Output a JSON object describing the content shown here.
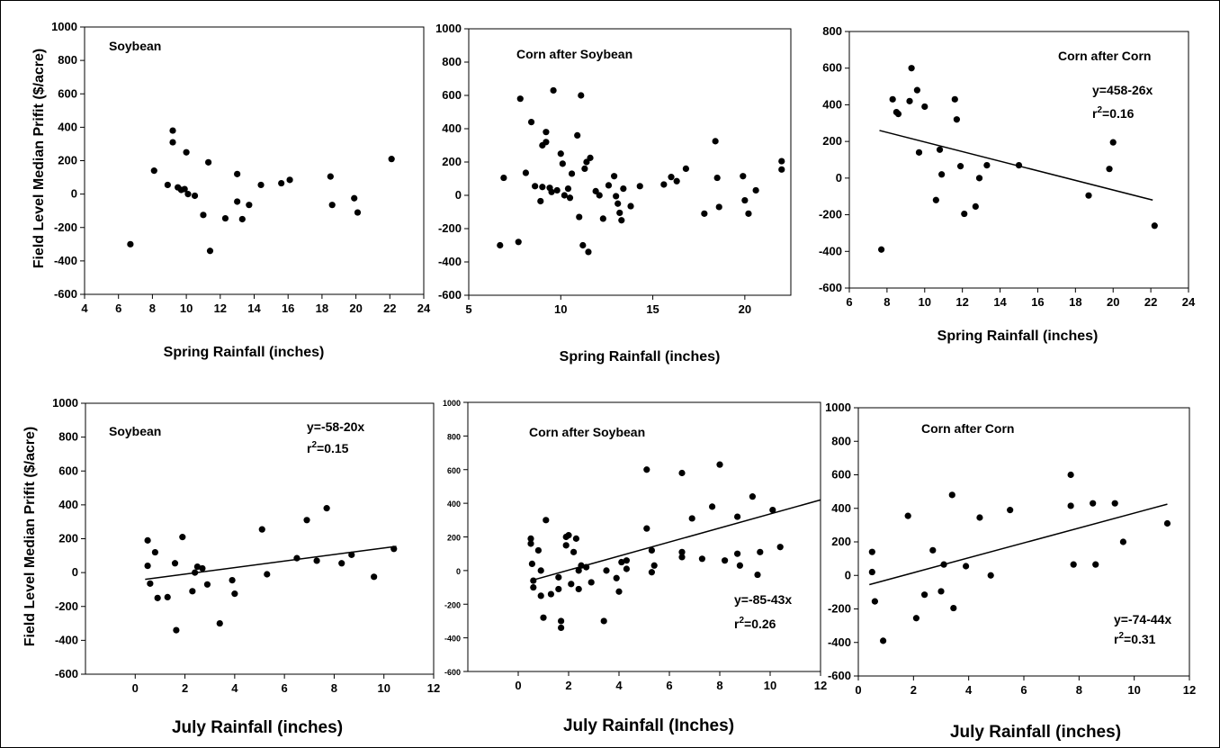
{
  "figure": {
    "ylabel": "Field Level Median Prifit ($/acre)"
  },
  "chart_data": [
    {
      "type": "scatter",
      "title": "Soybean",
      "xlabel": "Spring Rainfall (inches)",
      "xlim": [
        4,
        24
      ],
      "ylim": [
        -600,
        1000
      ],
      "xticks": [
        4,
        6,
        8,
        10,
        12,
        14,
        16,
        18,
        20,
        22,
        24
      ],
      "yticks": [
        -600,
        -400,
        -200,
        0,
        200,
        400,
        600,
        800,
        1000
      ],
      "show_ylabel": true,
      "points": [
        [
          6.7,
          -300
        ],
        [
          8.1,
          140
        ],
        [
          8.9,
          55
        ],
        [
          9.2,
          380
        ],
        [
          9.2,
          310
        ],
        [
          9.5,
          40
        ],
        [
          9.7,
          25
        ],
        [
          9.9,
          30
        ],
        [
          10.0,
          250
        ],
        [
          10.1,
          0
        ],
        [
          10.5,
          -10
        ],
        [
          11.0,
          -125
        ],
        [
          11.3,
          190
        ],
        [
          11.4,
          -340
        ],
        [
          12.3,
          -145
        ],
        [
          13.0,
          120
        ],
        [
          13.0,
          -45
        ],
        [
          13.3,
          -150
        ],
        [
          13.7,
          -65
        ],
        [
          14.4,
          55
        ],
        [
          15.6,
          65
        ],
        [
          16.1,
          85
        ],
        [
          18.5,
          105
        ],
        [
          18.6,
          -65
        ],
        [
          19.9,
          -25
        ],
        [
          20.1,
          -110
        ],
        [
          22.1,
          210
        ]
      ]
    },
    {
      "type": "scatter",
      "title": "Corn after Soybean",
      "xlabel": "Spring Rainfall (inches)",
      "xlim": [
        5,
        22.5
      ],
      "ylim": [
        -600,
        1000
      ],
      "xticks": [
        5,
        10,
        15,
        20
      ],
      "yticks": [
        -600,
        -400,
        -200,
        0,
        200,
        400,
        600,
        800,
        1000
      ],
      "points": [
        [
          6.7,
          -300
        ],
        [
          6.9,
          105
        ],
        [
          7.7,
          -280
        ],
        [
          7.8,
          580
        ],
        [
          8.1,
          135
        ],
        [
          8.4,
          440
        ],
        [
          8.6,
          55
        ],
        [
          8.9,
          -35
        ],
        [
          9.0,
          50
        ],
        [
          9.0,
          300
        ],
        [
          9.2,
          320
        ],
        [
          9.2,
          380
        ],
        [
          9.4,
          45
        ],
        [
          9.5,
          20
        ],
        [
          9.6,
          630
        ],
        [
          9.8,
          30
        ],
        [
          10.0,
          250
        ],
        [
          10.1,
          190
        ],
        [
          10.2,
          0
        ],
        [
          10.4,
          40
        ],
        [
          10.5,
          -15
        ],
        [
          10.6,
          130
        ],
        [
          10.9,
          360
        ],
        [
          11.0,
          -130
        ],
        [
          11.1,
          600
        ],
        [
          11.2,
          -300
        ],
        [
          11.3,
          160
        ],
        [
          11.4,
          200
        ],
        [
          11.5,
          -340
        ],
        [
          11.6,
          225
        ],
        [
          11.9,
          25
        ],
        [
          12.1,
          0
        ],
        [
          12.3,
          -140
        ],
        [
          12.6,
          60
        ],
        [
          12.9,
          115
        ],
        [
          13.0,
          -5
        ],
        [
          13.1,
          -50
        ],
        [
          13.2,
          -105
        ],
        [
          13.3,
          -150
        ],
        [
          13.4,
          40
        ],
        [
          13.8,
          -65
        ],
        [
          14.3,
          55
        ],
        [
          15.6,
          65
        ],
        [
          16.0,
          110
        ],
        [
          16.3,
          85
        ],
        [
          16.8,
          160
        ],
        [
          17.8,
          -110
        ],
        [
          18.4,
          325
        ],
        [
          18.5,
          105
        ],
        [
          18.6,
          -70
        ],
        [
          19.9,
          115
        ],
        [
          20.0,
          -30
        ],
        [
          20.2,
          -110
        ],
        [
          20.6,
          30
        ],
        [
          22.0,
          205
        ],
        [
          22.0,
          155
        ]
      ]
    },
    {
      "type": "scatter",
      "title": "Corn after Corn",
      "xlabel": "Spring Rainfall (inches)",
      "xlim": [
        6,
        24
      ],
      "ylim": [
        -600,
        800
      ],
      "xticks": [
        6,
        8,
        10,
        12,
        14,
        16,
        18,
        20,
        22,
        24
      ],
      "yticks": [
        -600,
        -400,
        -200,
        0,
        200,
        400,
        600,
        800
      ],
      "equation": "y=458-26x",
      "r2_prefix": "r",
      "r2_sup": "2",
      "r2_value": "=0.16",
      "trendline": {
        "x": [
          7.6,
          22.1
        ],
        "y": [
          260,
          -120
        ]
      },
      "points": [
        [
          7.7,
          -390
        ],
        [
          8.3,
          430
        ],
        [
          8.5,
          360
        ],
        [
          8.6,
          350
        ],
        [
          9.2,
          420
        ],
        [
          9.3,
          600
        ],
        [
          9.6,
          480
        ],
        [
          9.7,
          140
        ],
        [
          10.0,
          390
        ],
        [
          10.6,
          -120
        ],
        [
          10.8,
          155
        ],
        [
          10.9,
          20
        ],
        [
          11.6,
          430
        ],
        [
          11.7,
          320
        ],
        [
          11.9,
          65
        ],
        [
          12.1,
          -195
        ],
        [
          12.7,
          -155
        ],
        [
          12.9,
          0
        ],
        [
          13.3,
          70
        ],
        [
          15.0,
          70
        ],
        [
          18.7,
          -95
        ],
        [
          19.8,
          50
        ],
        [
          20.0,
          195
        ],
        [
          22.2,
          -260
        ]
      ]
    },
    {
      "type": "scatter",
      "title": "Soybean",
      "xlabel": "July Rainfall (inches)",
      "xlim": [
        -2,
        12
      ],
      "ylim": [
        -600,
        1000
      ],
      "xticks": [
        0,
        2,
        4,
        6,
        8,
        10,
        12
      ],
      "yticks": [
        -600,
        -400,
        -200,
        0,
        200,
        400,
        600,
        800,
        1000
      ],
      "show_ylabel": true,
      "equation": "y=-58-20x",
      "r2_prefix": "r",
      "r2_sup": "2",
      "r2_value": "=0.15",
      "trendline": {
        "x": [
          0.4,
          10.5
        ],
        "y": [
          -40,
          155
        ]
      },
      "points": [
        [
          0.5,
          190
        ],
        [
          0.5,
          40
        ],
        [
          0.6,
          -65
        ],
        [
          0.8,
          120
        ],
        [
          0.9,
          -150
        ],
        [
          1.3,
          -145
        ],
        [
          1.6,
          55
        ],
        [
          1.65,
          -340
        ],
        [
          1.9,
          210
        ],
        [
          2.3,
          -110
        ],
        [
          2.4,
          0
        ],
        [
          2.5,
          35
        ],
        [
          2.7,
          25
        ],
        [
          2.9,
          -70
        ],
        [
          3.4,
          -300
        ],
        [
          3.9,
          -45
        ],
        [
          4.0,
          -125
        ],
        [
          5.1,
          255
        ],
        [
          5.3,
          -10
        ],
        [
          6.5,
          85
        ],
        [
          6.9,
          310
        ],
        [
          7.3,
          70
        ],
        [
          7.7,
          380
        ],
        [
          8.3,
          55
        ],
        [
          8.7,
          105
        ],
        [
          9.6,
          -25
        ],
        [
          10.4,
          140
        ]
      ]
    },
    {
      "type": "scatter",
      "title": "Corn after Soybean",
      "xlabel": "July Rainfall (Inches)",
      "xlim": [
        -2,
        12
      ],
      "ylim": [
        -600,
        1000
      ],
      "xticks": [
        0,
        2,
        4,
        6,
        8,
        10,
        12
      ],
      "yticks": [
        -600,
        -400,
        -200,
        0,
        200,
        400,
        600,
        800,
        1000
      ],
      "equation": "y=-85-43x",
      "r2_prefix": "r",
      "r2_sup": "2",
      "r2_value": "=0.26",
      "trendline": {
        "x": [
          0.5,
          12.0
        ],
        "y": [
          -60,
          420
        ]
      },
      "points": [
        [
          0.5,
          190
        ],
        [
          0.5,
          160
        ],
        [
          0.55,
          40
        ],
        [
          0.6,
          -60
        ],
        [
          0.6,
          -100
        ],
        [
          0.8,
          120
        ],
        [
          0.9,
          0
        ],
        [
          0.9,
          -150
        ],
        [
          1.0,
          -280
        ],
        [
          1.1,
          300
        ],
        [
          1.3,
          -140
        ],
        [
          1.6,
          -40
        ],
        [
          1.6,
          -110
        ],
        [
          1.7,
          -300
        ],
        [
          1.7,
          -340
        ],
        [
          1.9,
          150
        ],
        [
          1.9,
          200
        ],
        [
          2.0,
          210
        ],
        [
          2.1,
          -80
        ],
        [
          2.2,
          110
        ],
        [
          2.3,
          190
        ],
        [
          2.4,
          -110
        ],
        [
          2.4,
          0
        ],
        [
          2.5,
          30
        ],
        [
          2.7,
          20
        ],
        [
          2.9,
          -70
        ],
        [
          3.4,
          -300
        ],
        [
          3.5,
          0
        ],
        [
          3.9,
          -45
        ],
        [
          4.0,
          -125
        ],
        [
          4.1,
          50
        ],
        [
          4.3,
          60
        ],
        [
          4.3,
          10
        ],
        [
          5.1,
          600
        ],
        [
          5.1,
          250
        ],
        [
          5.3,
          120
        ],
        [
          5.3,
          -10
        ],
        [
          5.4,
          30
        ],
        [
          6.5,
          580
        ],
        [
          6.5,
          110
        ],
        [
          6.5,
          80
        ],
        [
          6.9,
          310
        ],
        [
          7.3,
          70
        ],
        [
          7.7,
          380
        ],
        [
          8.0,
          630
        ],
        [
          8.2,
          60
        ],
        [
          8.7,
          320
        ],
        [
          8.7,
          100
        ],
        [
          8.8,
          30
        ],
        [
          9.3,
          440
        ],
        [
          9.5,
          -25
        ],
        [
          9.6,
          110
        ],
        [
          10.1,
          360
        ],
        [
          10.4,
          140
        ]
      ]
    },
    {
      "type": "scatter",
      "title": "Corn after Corn",
      "xlabel": "July Rainfall (inches)",
      "xlim": [
        0,
        12
      ],
      "ylim": [
        -600,
        1000
      ],
      "xticks": [
        0,
        2,
        4,
        6,
        8,
        10,
        12
      ],
      "yticks": [
        -600,
        -400,
        -200,
        0,
        200,
        400,
        600,
        800,
        1000
      ],
      "equation": "y=-74-44x",
      "r2_prefix": "r",
      "r2_sup": "2",
      "r2_value": "=0.31",
      "trendline": {
        "x": [
          0.4,
          11.2
        ],
        "y": [
          -55,
          425
        ]
      },
      "points": [
        [
          0.5,
          140
        ],
        [
          0.5,
          20
        ],
        [
          0.6,
          -155
        ],
        [
          0.9,
          -390
        ],
        [
          1.8,
          355
        ],
        [
          2.1,
          -255
        ],
        [
          2.4,
          -115
        ],
        [
          2.7,
          150
        ],
        [
          3.0,
          -95
        ],
        [
          3.1,
          65
        ],
        [
          3.4,
          480
        ],
        [
          3.45,
          -195
        ],
        [
          3.9,
          55
        ],
        [
          4.4,
          345
        ],
        [
          4.8,
          0
        ],
        [
          5.5,
          390
        ],
        [
          7.7,
          600
        ],
        [
          7.7,
          415
        ],
        [
          7.8,
          65
        ],
        [
          8.5,
          430
        ],
        [
          8.6,
          65
        ],
        [
          9.3,
          430
        ],
        [
          9.6,
          200
        ],
        [
          11.2,
          310
        ]
      ]
    }
  ]
}
